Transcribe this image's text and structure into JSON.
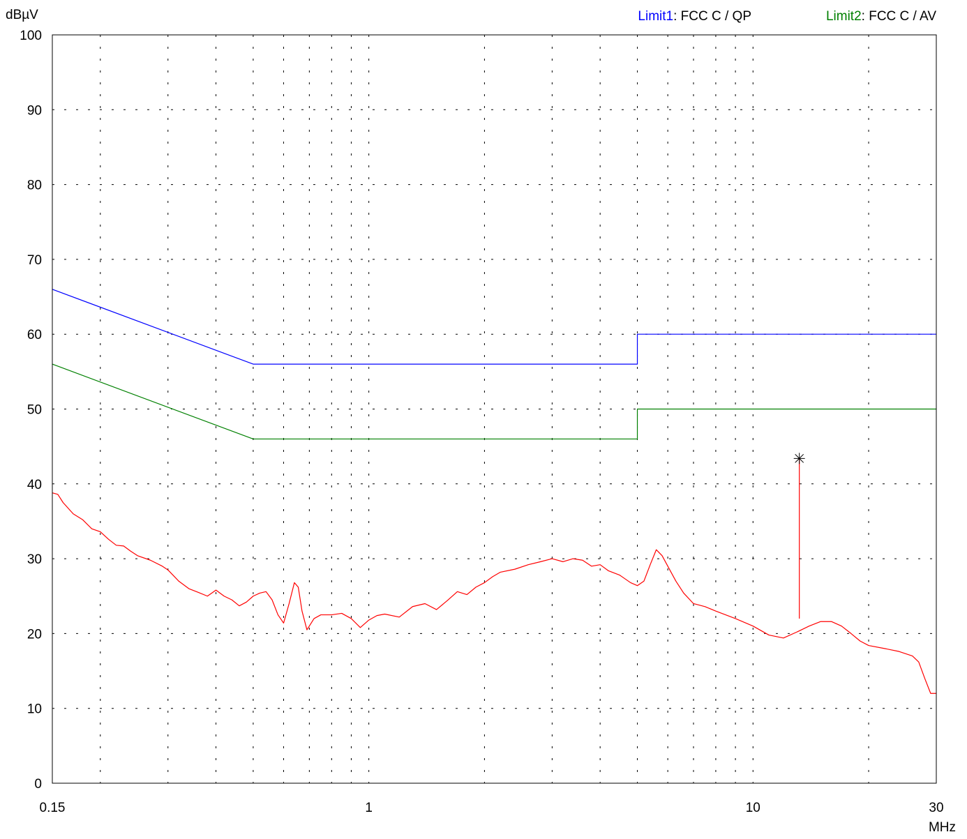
{
  "chart_data": {
    "type": "line",
    "title": "",
    "xlabel": "MHz",
    "ylabel": "dBµV",
    "x_scale": "log",
    "xlim": [
      0.15,
      30
    ],
    "ylim": [
      0,
      100
    ],
    "grid": true,
    "legend_position": "top-right",
    "x_tick_labels": [
      {
        "value": 0.15,
        "label": "0.15"
      },
      {
        "value": 1,
        "label": "1"
      },
      {
        "value": 10,
        "label": "10"
      },
      {
        "value": 30,
        "label": "30"
      }
    ],
    "y_tick_labels": [
      {
        "value": 0,
        "label": "0"
      },
      {
        "value": 10,
        "label": "10"
      },
      {
        "value": 20,
        "label": "20"
      },
      {
        "value": 30,
        "label": "30"
      },
      {
        "value": 40,
        "label": "40"
      },
      {
        "value": 50,
        "label": "50"
      },
      {
        "value": 60,
        "label": "60"
      },
      {
        "value": 70,
        "label": "70"
      },
      {
        "value": 80,
        "label": "80"
      },
      {
        "value": 90,
        "label": "90"
      },
      {
        "value": 100,
        "label": "100"
      }
    ],
    "legend": [
      {
        "name": "Limit1",
        "text": ": FCC C / QP",
        "color": "#0000ff"
      },
      {
        "name": "Limit2",
        "text": ": FCC C / AV",
        "color": "#008000"
      }
    ],
    "series": [
      {
        "name": "Limit1",
        "color": "#0000ff",
        "points": [
          [
            0.15,
            66
          ],
          [
            0.5,
            56
          ],
          [
            5,
            56
          ],
          [
            5,
            60
          ],
          [
            30,
            60
          ]
        ]
      },
      {
        "name": "Limit2",
        "color": "#008000",
        "points": [
          [
            0.15,
            56
          ],
          [
            0.5,
            46
          ],
          [
            5,
            46
          ],
          [
            5,
            50
          ],
          [
            30,
            50
          ]
        ]
      },
      {
        "color": "#ff0000",
        "points": [
          [
            0.15,
            38.8
          ],
          [
            0.155,
            38.6
          ],
          [
            0.16,
            37.5
          ],
          [
            0.17,
            36.0
          ],
          [
            0.18,
            35.2
          ],
          [
            0.19,
            34.0
          ],
          [
            0.2,
            33.6
          ],
          [
            0.21,
            32.6
          ],
          [
            0.22,
            31.8
          ],
          [
            0.23,
            31.7
          ],
          [
            0.24,
            31.0
          ],
          [
            0.25,
            30.4
          ],
          [
            0.27,
            29.8
          ],
          [
            0.29,
            29.0
          ],
          [
            0.3,
            28.5
          ],
          [
            0.32,
            27.0
          ],
          [
            0.34,
            26.0
          ],
          [
            0.36,
            25.5
          ],
          [
            0.38,
            25.0
          ],
          [
            0.4,
            25.8
          ],
          [
            0.42,
            25.0
          ],
          [
            0.44,
            24.5
          ],
          [
            0.46,
            23.7
          ],
          [
            0.48,
            24.2
          ],
          [
            0.5,
            25.0
          ],
          [
            0.52,
            25.4
          ],
          [
            0.54,
            25.6
          ],
          [
            0.56,
            24.5
          ],
          [
            0.58,
            22.5
          ],
          [
            0.6,
            21.4
          ],
          [
            0.62,
            24.0
          ],
          [
            0.64,
            26.8
          ],
          [
            0.655,
            26.2
          ],
          [
            0.67,
            23.0
          ],
          [
            0.69,
            20.5
          ],
          [
            0.72,
            22.0
          ],
          [
            0.75,
            22.5
          ],
          [
            0.8,
            22.5
          ],
          [
            0.85,
            22.7
          ],
          [
            0.9,
            22.0
          ],
          [
            0.95,
            20.8
          ],
          [
            1.0,
            21.8
          ],
          [
            1.05,
            22.4
          ],
          [
            1.1,
            22.6
          ],
          [
            1.2,
            22.2
          ],
          [
            1.3,
            23.6
          ],
          [
            1.4,
            24.0
          ],
          [
            1.5,
            23.2
          ],
          [
            1.6,
            24.4
          ],
          [
            1.7,
            25.6
          ],
          [
            1.8,
            25.2
          ],
          [
            1.9,
            26.2
          ],
          [
            2.0,
            26.8
          ],
          [
            2.1,
            27.6
          ],
          [
            2.2,
            28.2
          ],
          [
            2.4,
            28.6
          ],
          [
            2.6,
            29.2
          ],
          [
            2.8,
            29.6
          ],
          [
            3.0,
            30.0
          ],
          [
            3.2,
            29.6
          ],
          [
            3.4,
            30.0
          ],
          [
            3.6,
            29.8
          ],
          [
            3.8,
            29.0
          ],
          [
            4.0,
            29.2
          ],
          [
            4.2,
            28.4
          ],
          [
            4.5,
            27.8
          ],
          [
            4.8,
            26.8
          ],
          [
            5.0,
            26.4
          ],
          [
            5.2,
            27.0
          ],
          [
            5.4,
            29.2
          ],
          [
            5.6,
            31.2
          ],
          [
            5.8,
            30.4
          ],
          [
            6.0,
            29.0
          ],
          [
            6.3,
            27.0
          ],
          [
            6.6,
            25.4
          ],
          [
            7.0,
            24.0
          ],
          [
            7.5,
            23.6
          ],
          [
            8.0,
            23.0
          ],
          [
            9.0,
            22.0
          ],
          [
            10.0,
            21.0
          ],
          [
            11.0,
            19.8
          ],
          [
            12.0,
            19.4
          ],
          [
            13.0,
            20.2
          ],
          [
            14.0,
            21.0
          ],
          [
            15.0,
            21.6
          ],
          [
            16.0,
            21.6
          ],
          [
            17.0,
            21.0
          ],
          [
            18.0,
            20.0
          ],
          [
            19.0,
            19.0
          ],
          [
            20.0,
            18.4
          ],
          [
            22.0,
            18.0
          ],
          [
            24.0,
            17.6
          ],
          [
            26.0,
            17.0
          ],
          [
            27.0,
            16.2
          ],
          [
            28.0,
            14.0
          ],
          [
            29.0,
            12.0
          ],
          [
            30.0,
            12.0
          ]
        ]
      }
    ],
    "spike": {
      "x": 13.2,
      "base": 22.0,
      "peak": 43.4,
      "color": "#ff0000"
    }
  }
}
